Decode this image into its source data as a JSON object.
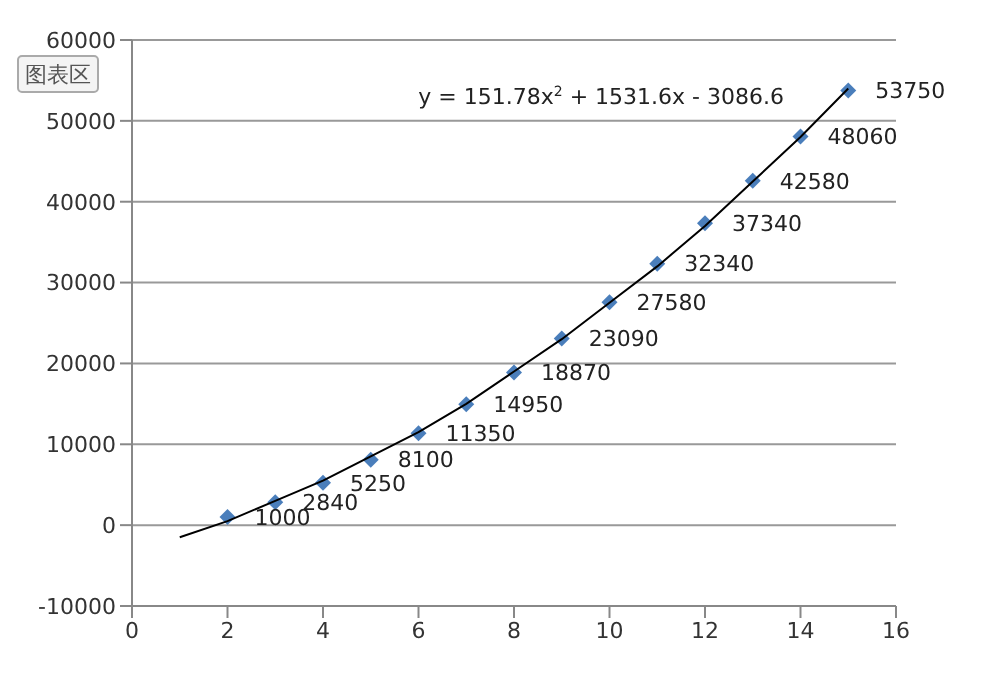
{
  "chart_data": {
    "type": "scatter",
    "annotations": [
      "图表区",
      "y = 151.78x$^{2}$ + 1531.6x - 3086.6"
    ],
    "x": [
      2,
      3,
      4,
      5,
      6,
      7,
      8,
      9,
      10,
      11,
      12,
      13,
      14,
      15
    ],
    "series": [
      {
        "color": "#4a7ebb",
        "marker": "diamond",
        "values": [
          1000,
          2840,
          5250,
          8100,
          11350,
          14950,
          18870,
          23090,
          27580,
          32340,
          37340,
          42580,
          48060,
          53750
        ],
        "value_labels": [
          "1000",
          "2840",
          "5250",
          "8100",
          "11350",
          "14950",
          "18870",
          "23090",
          "27580",
          "32340",
          "37340",
          "42580",
          "48060",
          "53750"
        ]
      },
      {
        "type": "line",
        "color": "#000000",
        "marker": "none",
        "x": [
          1,
          2,
          3,
          4,
          5,
          6,
          7,
          8,
          9,
          10,
          11,
          12,
          13,
          14,
          15
        ],
        "values": [
          -1500,
          500,
          3000,
          5500,
          8500,
          11500,
          15000,
          19000,
          23000,
          27500,
          32000,
          37000,
          42500,
          48000,
          54000
        ]
      }
    ],
    "xlim": [
      0,
      16
    ],
    "xticks": [
      0,
      2,
      4,
      6,
      8,
      10,
      12,
      14,
      16
    ],
    "ylim": [
      -10000,
      60000
    ],
    "yticks": [
      -10000,
      0,
      10000,
      20000,
      30000,
      40000,
      50000,
      60000
    ],
    "grid": "y",
    "legend": false
  }
}
